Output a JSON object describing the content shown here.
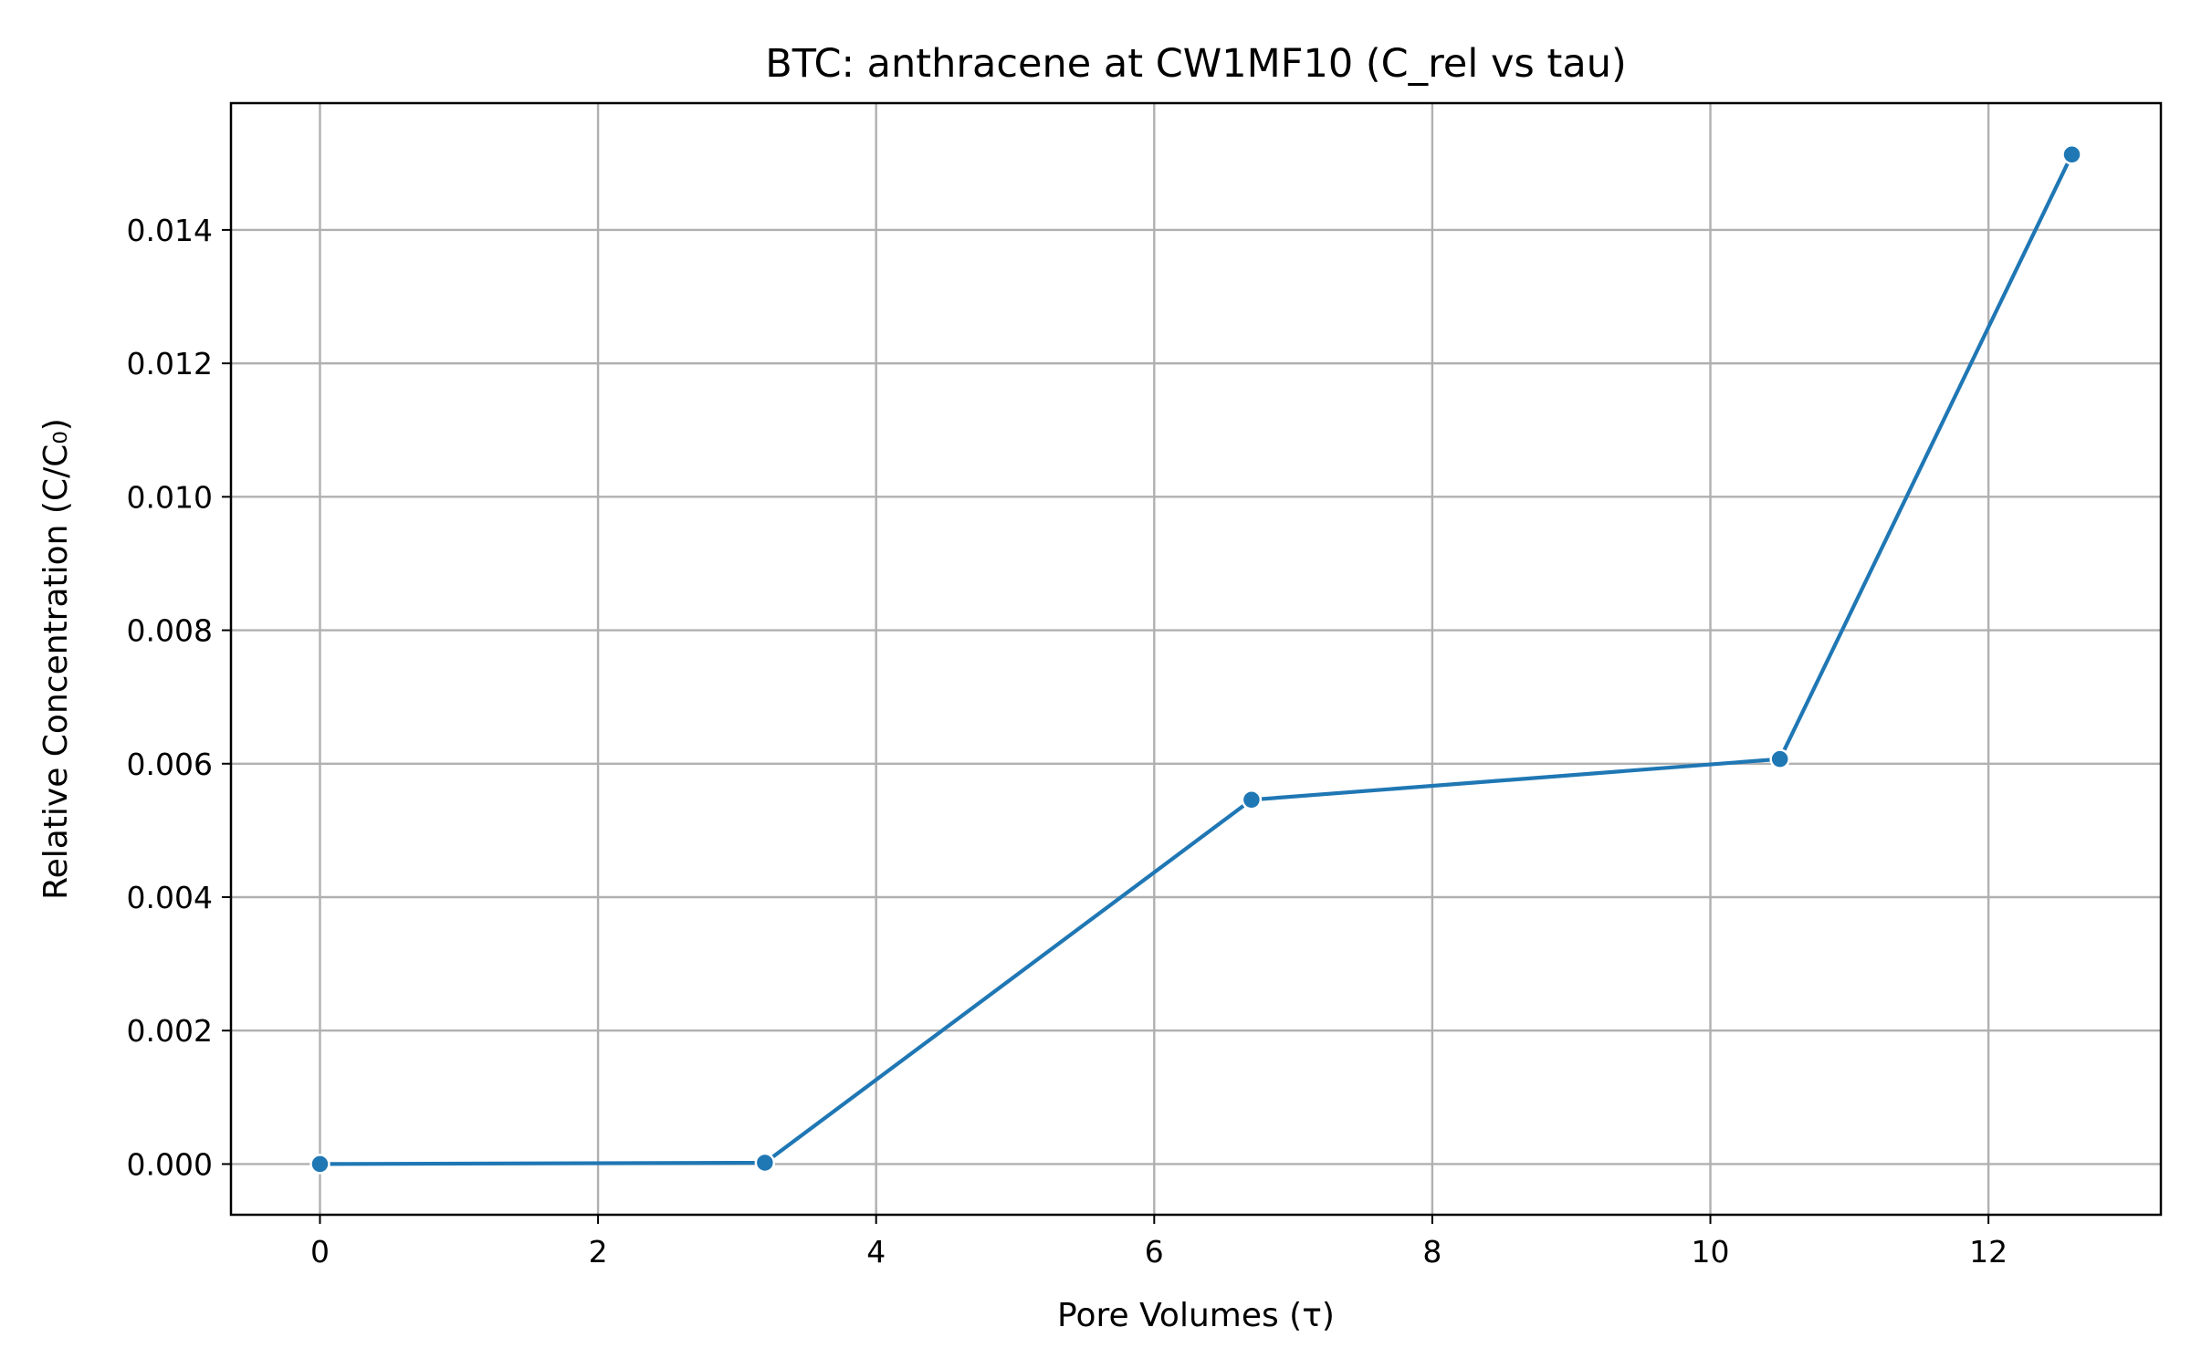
{
  "chart_data": {
    "type": "line",
    "title": "BTC: anthracene at CW1MF10 (C_rel vs tau)",
    "xlabel": "Pore Volumes (τ)",
    "ylabel": "Relative Concentration (C/C₀)",
    "xlim": [
      -0.64,
      13.24
    ],
    "ylim": [
      -0.00076,
      0.0159
    ],
    "xticks": [
      0,
      2,
      4,
      6,
      8,
      10,
      12
    ],
    "xtick_labels": [
      "0",
      "2",
      "4",
      "6",
      "8",
      "10",
      "12"
    ],
    "yticks": [
      0.0,
      0.002,
      0.004,
      0.006,
      0.008,
      0.01,
      0.012,
      0.014
    ],
    "ytick_labels": [
      "0.000",
      "0.002",
      "0.004",
      "0.006",
      "0.008",
      "0.010",
      "0.012",
      "0.014"
    ],
    "grid": true,
    "legend": "none",
    "series": [
      {
        "color": "#1f77b4",
        "marker": "circle",
        "x": [
          0,
          3.2,
          6.7,
          10.5,
          12.6
        ],
        "y": [
          0.0,
          2e-05,
          0.00546,
          0.00607,
          0.01513
        ]
      }
    ]
  }
}
